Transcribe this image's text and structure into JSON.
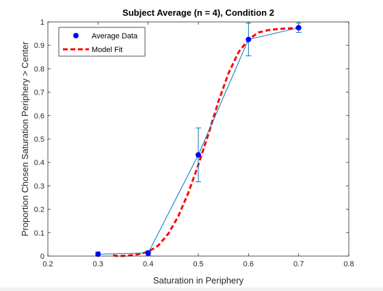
{
  "chart_data": {
    "type": "line",
    "title": "Subject Average (n = 4), Condition 2",
    "xlabel": "Saturation in Periphery",
    "ylabel": "Proportion Chosen Saturation Periphery > Center",
    "xlim": [
      0.2,
      0.8
    ],
    "ylim": [
      0,
      1
    ],
    "xticks": [
      0.2,
      0.3,
      0.4,
      0.5,
      0.6,
      0.7,
      0.8
    ],
    "xtick_labels": [
      "0.2",
      "0.3",
      "0.4",
      "0.5",
      "0.6",
      "0.7",
      "0.8"
    ],
    "yticks": [
      0,
      0.1,
      0.2,
      0.3,
      0.4,
      0.5,
      0.6,
      0.7,
      0.8,
      0.9,
      1
    ],
    "ytick_labels": [
      "0",
      "0.1",
      "0.2",
      "0.3",
      "0.4",
      "0.5",
      "0.6",
      "0.7",
      "0.8",
      "0.9",
      "1"
    ],
    "grid": false,
    "legend_position": "top-left",
    "series": [
      {
        "name": "Average Data",
        "style": "markers+line",
        "color": "#0000ff",
        "line_color": "#0072bd",
        "x": [
          0.3,
          0.4,
          0.5,
          0.6,
          0.7
        ],
        "y": [
          0.008,
          0.013,
          0.432,
          0.925,
          0.975
        ],
        "error": [
          0.01,
          0.01,
          0.115,
          0.07,
          0.02
        ]
      },
      {
        "name": "Model Fit",
        "style": "dashed",
        "color": "#ff0000",
        "x": [
          0.33,
          0.34,
          0.36,
          0.38,
          0.4,
          0.42,
          0.44,
          0.46,
          0.48,
          0.5,
          0.52,
          0.54,
          0.56,
          0.58,
          0.6,
          0.62,
          0.64,
          0.66,
          0.68,
          0.7
        ],
        "y": [
          0.003,
          0.0,
          0.002,
          0.008,
          0.018,
          0.045,
          0.095,
          0.17,
          0.27,
          0.39,
          0.52,
          0.66,
          0.78,
          0.87,
          0.925,
          0.955,
          0.965,
          0.97,
          0.972,
          0.975
        ]
      }
    ]
  }
}
